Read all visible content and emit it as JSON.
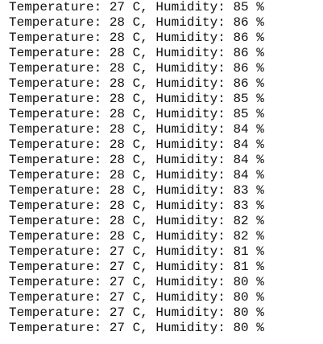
{
  "console": {
    "lines": [
      "Temperature: 27 C, Humidity: 85 %",
      "Temperature: 28 C, Humidity: 86 %",
      "Temperature: 28 C, Humidity: 86 %",
      "Temperature: 28 C, Humidity: 86 %",
      "Temperature: 28 C, Humidity: 86 %",
      "Temperature: 28 C, Humidity: 86 %",
      "Temperature: 28 C, Humidity: 85 %",
      "Temperature: 28 C, Humidity: 85 %",
      "Temperature: 28 C, Humidity: 84 %",
      "Temperature: 28 C, Humidity: 84 %",
      "Temperature: 28 C, Humidity: 84 %",
      "Temperature: 28 C, Humidity: 84 %",
      "Temperature: 28 C, Humidity: 83 %",
      "Temperature: 28 C, Humidity: 83 %",
      "Temperature: 28 C, Humidity: 82 %",
      "Temperature: 28 C, Humidity: 82 %",
      "Temperature: 27 C, Humidity: 81 %",
      "Temperature: 27 C, Humidity: 81 %",
      "Temperature: 27 C, Humidity: 80 %",
      "Temperature: 27 C, Humidity: 80 %",
      "Temperature: 27 C, Humidity: 80 %",
      "Temperature: 27 C, Humidity: 80 %"
    ]
  },
  "colors": {
    "background": "#ffffff",
    "text": "#111111"
  }
}
